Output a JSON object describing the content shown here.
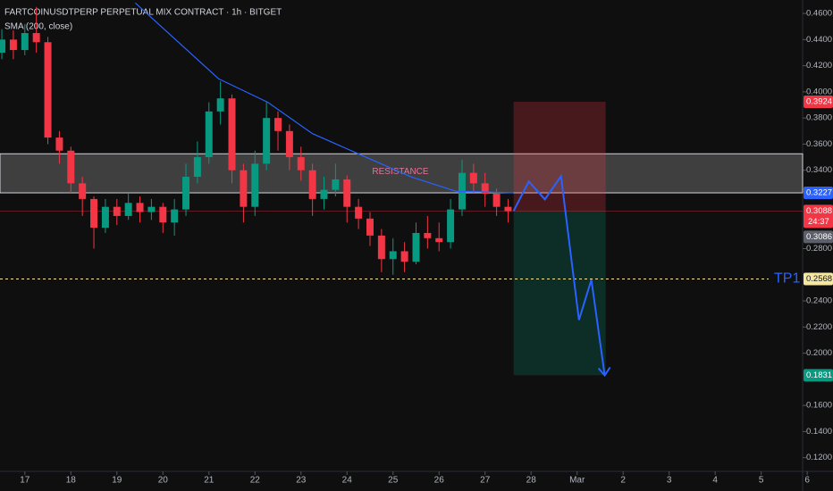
{
  "chart_data": {
    "type": "candlestick",
    "title": "FARTCOINUSDTPERP PERPETUAL MIX CONTRACT · 1h · BITGET",
    "indicator": {
      "name": "SMA (200, close)",
      "color": "#2962ff",
      "x": [
        19.4,
        21.21,
        22.28,
        23.25,
        24.22,
        25.39,
        26.36,
        27.62
      ],
      "values": [
        0.468,
        0.41,
        0.392,
        0.368,
        0.353,
        0.335,
        0.324,
        0.3227
      ]
    },
    "candles": {
      "up_color": "#089981",
      "down_color": "#f23645",
      "x": [
        16.5,
        16.75,
        17,
        17.25,
        17.5,
        17.75,
        18,
        18.25,
        18.5,
        18.75,
        19,
        19.25,
        19.5,
        19.75,
        20,
        20.25,
        20.5,
        20.75,
        21,
        21.25,
        21.5,
        21.75,
        22,
        22.25,
        22.5,
        22.75,
        23,
        23.25,
        23.5,
        23.75,
        24,
        24.25,
        24.5,
        24.75,
        25,
        25.25,
        25.5,
        25.75,
        26,
        26.25,
        26.5,
        26.75,
        27,
        27.25,
        27.5
      ],
      "open": [
        0.43,
        0.44,
        0.432,
        0.445,
        0.438,
        0.365,
        0.355,
        0.33,
        0.318,
        0.296,
        0.312,
        0.305,
        0.315,
        0.308,
        0.312,
        0.3,
        0.31,
        0.335,
        0.35,
        0.385,
        0.395,
        0.34,
        0.312,
        0.345,
        0.38,
        0.37,
        0.35,
        0.34,
        0.318,
        0.325,
        0.333,
        0.312,
        0.303,
        0.29,
        0.272,
        0.278,
        0.27,
        0.292,
        0.288,
        0.285,
        0.31,
        0.338,
        0.33,
        0.322,
        0.312
      ],
      "high": [
        0.448,
        0.447,
        0.452,
        0.465,
        0.442,
        0.37,
        0.358,
        0.335,
        0.32,
        0.318,
        0.318,
        0.322,
        0.32,
        0.318,
        0.315,
        0.318,
        0.345,
        0.362,
        0.392,
        0.408,
        0.398,
        0.345,
        0.355,
        0.392,
        0.385,
        0.375,
        0.358,
        0.345,
        0.335,
        0.345,
        0.336,
        0.318,
        0.308,
        0.295,
        0.288,
        0.285,
        0.3,
        0.305,
        0.3,
        0.318,
        0.348,
        0.345,
        0.338,
        0.326,
        0.318
      ],
      "low": [
        0.425,
        0.425,
        0.428,
        0.43,
        0.36,
        0.345,
        0.322,
        0.305,
        0.28,
        0.292,
        0.298,
        0.302,
        0.3,
        0.302,
        0.292,
        0.29,
        0.305,
        0.33,
        0.345,
        0.375,
        0.33,
        0.3,
        0.305,
        0.34,
        0.355,
        0.34,
        0.332,
        0.305,
        0.31,
        0.32,
        0.3,
        0.295,
        0.282,
        0.262,
        0.26,
        0.262,
        0.268,
        0.28,
        0.278,
        0.28,
        0.305,
        0.322,
        0.312,
        0.305,
        0.3
      ],
      "close": [
        0.44,
        0.432,
        0.445,
        0.438,
        0.365,
        0.355,
        0.33,
        0.318,
        0.296,
        0.312,
        0.305,
        0.315,
        0.308,
        0.312,
        0.3,
        0.31,
        0.335,
        0.35,
        0.385,
        0.395,
        0.34,
        0.312,
        0.345,
        0.38,
        0.37,
        0.35,
        0.34,
        0.318,
        0.325,
        0.333,
        0.312,
        0.303,
        0.29,
        0.272,
        0.278,
        0.27,
        0.292,
        0.288,
        0.285,
        0.31,
        0.338,
        0.33,
        0.322,
        0.312,
        0.3086
      ]
    },
    "zone": {
      "name": "RESISTANCE",
      "ylim": [
        0.3227,
        0.3526
      ]
    },
    "position": {
      "x": [
        27.62,
        29.62
      ],
      "entry": 0.3088,
      "stop": 0.3924,
      "target": 0.1831
    },
    "projection": {
      "color": "#2962ff",
      "x": [
        27.62,
        27.95,
        28.3,
        28.65,
        29.04,
        29.31,
        29.6
      ],
      "values": [
        0.3088,
        0.3314,
        0.3177,
        0.3355,
        0.2254,
        0.2562,
        0.183
      ]
    },
    "tp": {
      "label": "TP1",
      "value": 0.2568
    },
    "price_labels": [
      {
        "value": 0.3924,
        "label": "0.3924",
        "color": "#f23645"
      },
      {
        "value": 0.3227,
        "label": "0.3227",
        "color": "#2962ff"
      },
      {
        "value": 0.3088,
        "label": "0.3088",
        "color": "#f23645"
      },
      {
        "value": 0.3086,
        "label": "0.3086",
        "color": "#5d606b"
      },
      {
        "value": 0.2568,
        "label": "0.2568",
        "color": "#f5e7a0"
      },
      {
        "value": 0.1831,
        "label": "0.1831",
        "color": "#089981"
      }
    ],
    "countdown": "24:37",
    "xlim": [
      16.46,
      33.9
    ],
    "ylim": [
      0.115,
      0.4703
    ],
    "xticks": [
      17,
      18,
      19,
      20,
      21,
      22,
      23,
      24,
      25,
      26,
      27,
      28,
      {
        "value": 29,
        "label": "Mar"
      },
      {
        "value": 30,
        "label": "2"
      },
      {
        "value": 31,
        "label": "3"
      },
      {
        "value": 32,
        "label": "4"
      },
      {
        "value": 33,
        "label": "5"
      },
      {
        "value": 34,
        "label": "6"
      }
    ],
    "yticks": [
      {
        "value": 0.46,
        "label": "0.4600"
      },
      {
        "value": 0.44,
        "label": "0.4400"
      },
      {
        "value": 0.42,
        "label": "0.4200"
      },
      {
        "value": 0.4,
        "label": "0.4000"
      },
      {
        "value": 0.38,
        "label": "0.3800"
      },
      {
        "value": 0.36,
        "label": "0.3600"
      },
      {
        "value": 0.34,
        "label": "0.3400"
      },
      {
        "value": 0.28,
        "label": "0.2800"
      },
      {
        "value": 0.24,
        "label": "0.2400"
      },
      {
        "value": 0.22,
        "label": "0.2200"
      },
      {
        "value": 0.2,
        "label": "0.2000"
      },
      {
        "value": 0.16,
        "label": "0.1600"
      },
      {
        "value": 0.14,
        "label": "0.1400"
      },
      {
        "value": 0.12,
        "label": "0.1200"
      }
    ]
  }
}
